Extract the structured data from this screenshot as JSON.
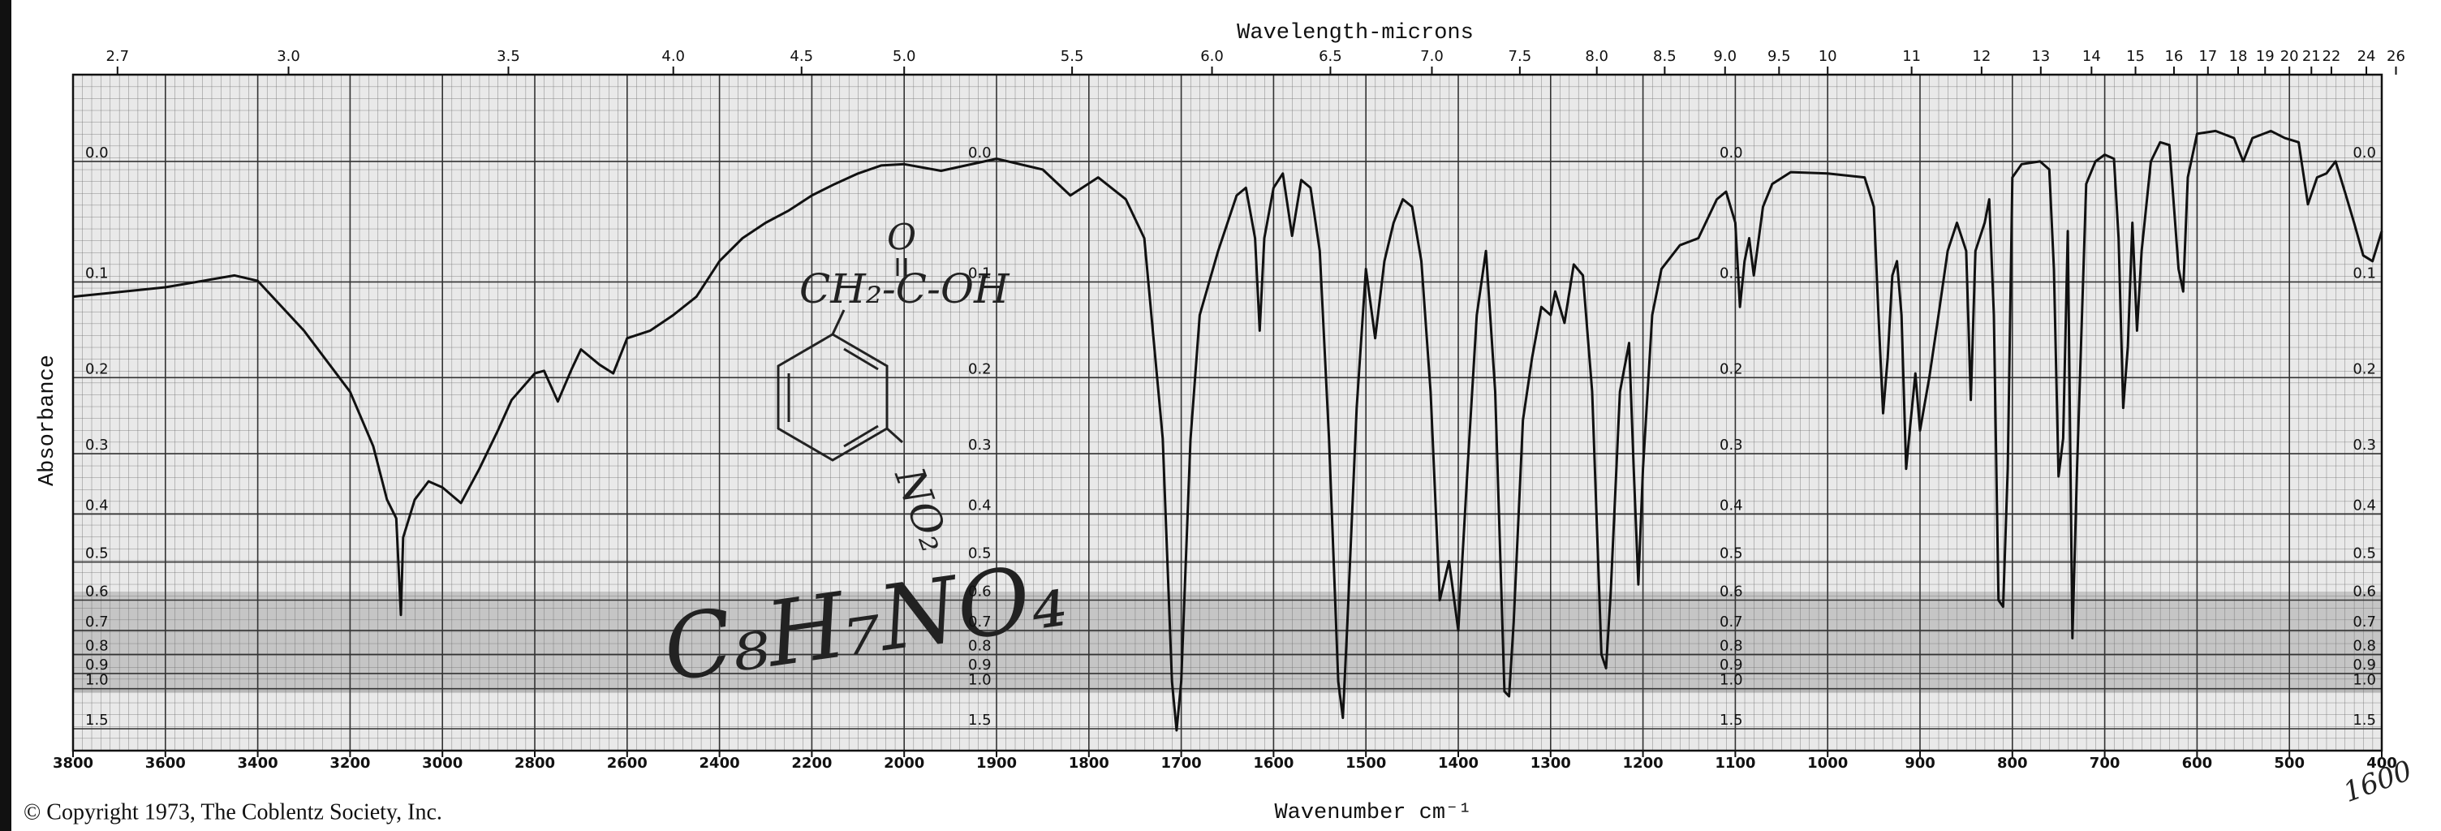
{
  "chart_data": {
    "type": "line",
    "title": "Wavelength-microns",
    "xlabel": "Wavenumber cm⁻¹",
    "ylabel": "Absorbance",
    "color": "#111111",
    "xlim": [
      3800,
      400
    ],
    "x_break": 2000,
    "xticks": [
      3800,
      3600,
      3400,
      3200,
      3000,
      2800,
      2600,
      2400,
      2200,
      2000,
      1900,
      1800,
      1700,
      1600,
      1500,
      1400,
      1300,
      1200,
      1100,
      1000,
      900,
      800,
      700,
      600,
      500,
      400
    ],
    "x2ticks": [
      2.7,
      {
        "value": 3,
        "label": "3.0"
      },
      3.5,
      {
        "value": 4,
        "label": "4.0"
      },
      4.5,
      {
        "value": 5,
        "label": "5.0"
      },
      5.5,
      {
        "value": 6,
        "label": "6.0"
      },
      6.5,
      {
        "value": 7,
        "label": "7.0"
      },
      7.5,
      {
        "value": 8,
        "label": "8.0"
      },
      8.5,
      {
        "value": 9,
        "label": "9.0"
      },
      9.5,
      10,
      11,
      12,
      13,
      14,
      15,
      16,
      17,
      18,
      19,
      20,
      21,
      22,
      24,
      26
    ],
    "ylim": [
      -0.06,
      1.5
    ],
    "y_scale": "absorbance",
    "yticks": [
      {
        "value": 0,
        "label": "0.0"
      },
      0.1,
      0.2,
      0.3,
      0.4,
      0.5,
      0.6,
      0.7,
      0.8,
      0.9,
      {
        "value": 1,
        "label": "1.0"
      },
      1.5
    ],
    "grid": true,
    "x": [
      3800,
      3600,
      3450,
      3400,
      3300,
      3200,
      3150,
      3120,
      3100,
      3090,
      3085,
      3060,
      3030,
      3000,
      2960,
      2920,
      2880,
      2850,
      2800,
      2780,
      2750,
      2720,
      2700,
      2660,
      2630,
      2600,
      2550,
      2500,
      2450,
      2400,
      2350,
      2300,
      2250,
      2200,
      2150,
      2100,
      2050,
      2000,
      1960,
      1900,
      1850,
      1820,
      1790,
      1760,
      1740,
      1720,
      1710,
      1705,
      1700,
      1690,
      1680,
      1660,
      1640,
      1630,
      1620,
      1615,
      1610,
      1600,
      1590,
      1580,
      1570,
      1560,
      1550,
      1540,
      1530,
      1525,
      1520,
      1510,
      1500,
      1490,
      1480,
      1470,
      1460,
      1450,
      1440,
      1430,
      1420,
      1410,
      1400,
      1390,
      1380,
      1370,
      1360,
      1350,
      1345,
      1340,
      1330,
      1320,
      1310,
      1300,
      1295,
      1285,
      1275,
      1265,
      1255,
      1245,
      1240,
      1235,
      1225,
      1215,
      1210,
      1205,
      1200,
      1190,
      1180,
      1160,
      1140,
      1120,
      1110,
      1100,
      1095,
      1090,
      1085,
      1080,
      1070,
      1060,
      1040,
      1000,
      960,
      950,
      945,
      940,
      935,
      930,
      925,
      920,
      915,
      910,
      905,
      900,
      890,
      880,
      870,
      860,
      850,
      845,
      840,
      830,
      825,
      820,
      815,
      810,
      805,
      800,
      790,
      770,
      760,
      755,
      750,
      745,
      740,
      735,
      730,
      720,
      710,
      700,
      690,
      685,
      680,
      675,
      670,
      665,
      660,
      650,
      640,
      630,
      620,
      615,
      610,
      600,
      580,
      560,
      550,
      540,
      520,
      505,
      490,
      480,
      470,
      460,
      450,
      440,
      430,
      420,
      410,
      400
    ],
    "values": [
      0.114,
      0.105,
      0.094,
      0.099,
      0.148,
      0.217,
      0.289,
      0.374,
      0.408,
      0.646,
      0.446,
      0.374,
      0.343,
      0.353,
      0.38,
      0.323,
      0.267,
      0.227,
      0.195,
      0.192,
      0.229,
      0.19,
      0.168,
      0.185,
      0.195,
      0.156,
      0.148,
      0.132,
      0.114,
      0.081,
      0.061,
      0.048,
      0.038,
      0.026,
      0.017,
      0.009,
      0.003,
      0.002,
      0.007,
      -0.002,
      0.006,
      0.026,
      0.012,
      0.029,
      0.061,
      0.278,
      0.95,
      1.54,
      0.95,
      0.28,
      0.132,
      0.072,
      0.026,
      0.02,
      0.061,
      0.148,
      0.061,
      0.02,
      0.009,
      0.059,
      0.014,
      0.02,
      0.072,
      0.278,
      0.95,
      1.3,
      0.67,
      0.237,
      0.088,
      0.156,
      0.081,
      0.048,
      0.029,
      0.035,
      0.081,
      0.217,
      0.6,
      0.498,
      0.7,
      0.323,
      0.132,
      0.072,
      0.217,
      1.02,
      1.06,
      0.67,
      0.253,
      0.177,
      0.124,
      0.132,
      0.109,
      0.14,
      0.084,
      0.094,
      0.217,
      0.8,
      0.87,
      0.58,
      0.217,
      0.161,
      0.323,
      0.556,
      0.323,
      0.132,
      0.088,
      0.067,
      0.061,
      0.029,
      0.023,
      0.048,
      0.124,
      0.081,
      0.061,
      0.094,
      0.035,
      0.017,
      0.008,
      0.009,
      0.012,
      0.035,
      0.132,
      0.244,
      0.177,
      0.094,
      0.081,
      0.132,
      0.323,
      0.253,
      0.195,
      0.267,
      0.2,
      0.132,
      0.072,
      0.048,
      0.072,
      0.227,
      0.072,
      0.048,
      0.029,
      0.132,
      0.6,
      0.62,
      0.323,
      0.012,
      0.002,
      0,
      0.006,
      0.088,
      0.335,
      0.278,
      0.055,
      0.73,
      0.323,
      0.017,
      0,
      -0.005,
      -0.002,
      0.061,
      0.237,
      0.165,
      0.048,
      0.148,
      0.072,
      0,
      -0.014,
      -0.012,
      0.088,
      0.109,
      0.012,
      -0.02,
      -0.022,
      -0.017,
      0,
      -0.017,
      -0.022,
      -0.017,
      -0.014,
      0.033,
      0.012,
      0.009,
      0,
      0.023,
      0.048,
      0.076,
      0.081,
      0.055
    ],
    "annotations": {
      "copyright": "© Copyright 1973, The Coblentz Society, Inc.",
      "formula": "C₈H₇NO₄",
      "structure_acid": "CH₂-C-OH",
      "structure_carbonyl": "O",
      "structure_nitro": "NO₂",
      "note": "1600"
    }
  }
}
